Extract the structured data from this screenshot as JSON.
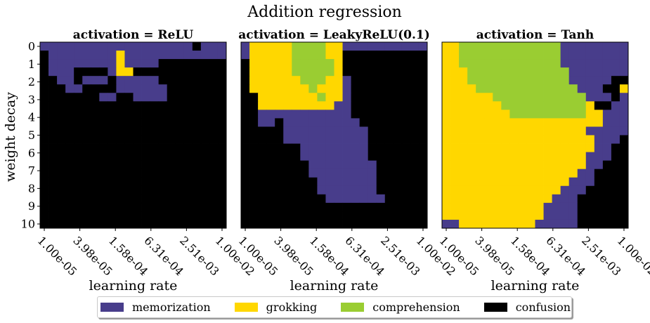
{
  "figure": {
    "suptitle": "Addition regression"
  },
  "colors": {
    "memorization": "#483d8b",
    "grokking": "#ffd700",
    "comprehension": "#9acd32",
    "confusion": "#000000"
  },
  "legend": {
    "items": [
      {
        "label": "memorization",
        "color": "#483d8b"
      },
      {
        "label": "grokking",
        "color": "#ffd700"
      },
      {
        "label": "comprehension",
        "color": "#9acd32"
      },
      {
        "label": "confusion",
        "color": "#000000"
      }
    ]
  },
  "chart_data": {
    "type": "heatmap",
    "title": "Addition regression",
    "xlabel": "learning rate",
    "ylabel": "weight decay",
    "code_key": {
      "M": "memorization",
      "G": "grokking",
      "C": "comprehension",
      "X": "confusion"
    },
    "x_ticks": [
      "1.00e-05",
      "3.98e-05",
      "1.58e-04",
      "6.31e-04",
      "2.51e-03",
      "1.00e-02"
    ],
    "y_ticks": [
      "0",
      "1",
      "2",
      "3",
      "4",
      "5",
      "6",
      "7",
      "8",
      "9",
      "10"
    ],
    "panels": [
      {
        "title": "activation = ReLU",
        "grid": [
          "MMMMMMMMMMMMMMMMMMXMMM",
          "XMMMMMMMMGMMMMMMMMMMMM",
          "XMMMMMMMMGMMMMXXXXXXXX",
          "XMMMXXXXMGGXXXXXXXXXXX",
          "XXMMXMMMXMMMMMXXXXXXXX",
          "XXXMMXXXXMMMMMMXXXXXXX",
          "XXXXXXXMMXXMMMMXXXXXXX",
          "XXXXXXXXXXXXXXXXXXXXXX",
          "XXXXXXXXXXXXXXXXXXXXXX",
          "XXXXXXXXXXXXXXXXXXXXXX",
          "XXXXXXXXXXXXXXXXXXXXXX",
          "XXXXXXXXXXXXXXXXXXXXXX",
          "XXXXXXXXXXXXXXXXXXXXXX",
          "XXXXXXXXXXXXXXXXXXXXXX",
          "XXXXXXXXXXXXXXXXXXXXXX",
          "XXXXXXXXXXXXXXXXXXXXXX",
          "XXXXXXXXXXXXXXXXXXXXXX",
          "XXXXXXXXXXXXXXXXXXXXXX",
          "XXXXXXXXXXXXXXXXXXXXXX",
          "XXXXXXXXXXXXXXXXXXXXXX",
          "XXXXXXXXXXXXXXXXXXXXXX",
          "XXXXXXXXXXXXXXXXXXXXXX"
        ]
      },
      {
        "title": "activation = LeakyReLU(0.1)",
        "grid": [
          "MGGGGGCCCCGGMMMMMMMMMM",
          "MGGGGGCCCCGGXXXXXXXXXX",
          "XGGGGGCCCCCGXXXXXXXXXX",
          "XGGGGGCCCCCGXXXXXXXXXX",
          "XGGGGGGCCCGGMXXXXXXXXX",
          "XGGGGGGGCGGGMXXXXXXXXX",
          "XXGGGGGGGCGGMXXXXXXXXX",
          "XXGGGGGGGGGMMXXXXXXXXX",
          "XXMMMMMMMMMMMXXXXXXXXX",
          "XXMMXMMMMMMMMMXXXXXXXX",
          "XXXXXMMMMMMMMMMXXXXXXX",
          "XXXXXMMMMMMMMMMXXXXXXX",
          "XXXXXXXMMMMMMMMXXXXXXX",
          "XXXXXXXMMMMMMMMXXXXXXX",
          "XXXXXXXXMMMMMMMMXXXXXX",
          "XXXXXXXXMMMMMMMMXXXXXX",
          "XXXXXXXXXMMMMMMMXXXXXX",
          "XXXXXXXXXMMMMMMMXXXXXX",
          "XXXXXXXXXXMMMMMMMXXXXX",
          "XXXXXXXXXXXXXXXXXXXXXX",
          "XXXXXXXXXXXXXXXXXXXXXX",
          "XXXXXXXXXXXXXXXXXXXXXX"
        ]
      },
      {
        "title": "activation = Tanh",
        "grid": [
          "GGCCCCCCCCCCCCMMMMMMMM",
          "GGCCCCCCCCCCCCMMMMMMMM",
          "GGCCCCCCCCCCCCMMMMMMMM",
          "GGGCCCCCCCCCCCCMMMMMMM",
          "GGGCCCCCCCCCCCCMMMMMXX",
          "GGGGCCCCCCCCCCCCMMMXXG",
          "GGGGGGCCCCCCCCCCCMMMXM",
          "GGGGGGGCCCCCCCCCCGXXMM",
          "GGGGGGGGCCCCCCCCCGGMMM",
          "GGGGGGGGGGGGGGGGGGGMMM",
          "GGGGGGGGGGGGGGGGGMMMMM",
          "GGGGGGGGGGGGGGGGGGMMMX",
          "GGGGGGGGGGGGGGGGGGMMXX",
          "GGGGGGGGGGGGGGGGGMMMXX",
          "GGGGGGGGGGGGGGGGGMMXXX",
          "GGGGGGGGGGGGGGGGMMXXXX",
          "GGGGGGGGGGGGGGGMMMXXXX",
          "GGGGGGGGGGGGGGMMMXXXXX",
          "GGGGGGGGGGGGGMMMXXXXXX",
          "GGGGGGGGGGGGMMMMXXXXXX",
          "GGGGGGGGGGGGMMMMXXXXXX",
          "MMGGGGGGGGGMMMMMXXXXXX"
        ]
      }
    ]
  }
}
